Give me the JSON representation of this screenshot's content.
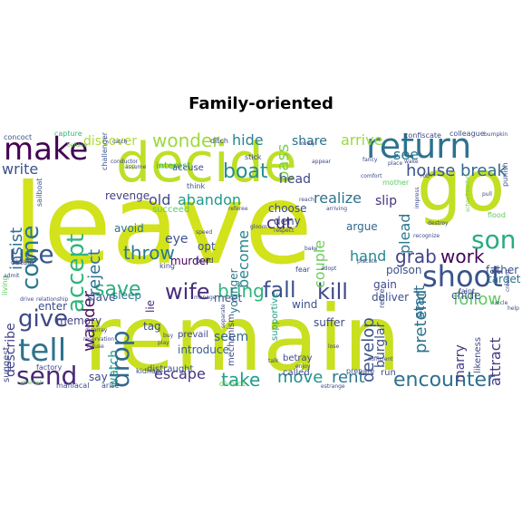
{
  "title": "Family-oriented",
  "words": [
    {
      "text": "leave",
      "color": "#d2e21b"
    },
    {
      "text": "remain",
      "color": "#c8e020"
    },
    {
      "text": "decide",
      "color": "#bddf26"
    },
    {
      "text": "go",
      "color": "#c2df23"
    },
    {
      "text": "return",
      "color": "#2c728e"
    },
    {
      "text": "make",
      "color": "#440154"
    },
    {
      "text": "shoot",
      "color": "#3b528b"
    },
    {
      "text": "tell",
      "color": "#2c728e"
    },
    {
      "text": "send",
      "color": "#482878"
    },
    {
      "text": "give",
      "color": "#3e4989"
    },
    {
      "text": "fall",
      "color": "#3b528b"
    },
    {
      "text": "use",
      "color": "#38588c"
    },
    {
      "text": "drop",
      "color": "#31688e"
    },
    {
      "text": "kill",
      "color": "#3e4a89"
    },
    {
      "text": "son",
      "color": "#27ad81"
    },
    {
      "text": "come",
      "color": "#2a788e"
    },
    {
      "text": "accept",
      "color": "#31b57b"
    },
    {
      "text": "save",
      "color": "#29af7f"
    },
    {
      "text": "wife",
      "color": "#472d7b"
    },
    {
      "text": "bring",
      "color": "#2fb47c"
    },
    {
      "text": "encounter",
      "color": "#2d708e"
    },
    {
      "text": "boat",
      "color": "#21908d"
    },
    {
      "text": "throw",
      "color": "#2a788e"
    },
    {
      "text": "follow",
      "color": "#5ec962"
    },
    {
      "text": "work",
      "color": "#450457"
    },
    {
      "text": "grab",
      "color": "#404688"
    },
    {
      "text": "take",
      "color": "#1f9e89"
    },
    {
      "text": "move",
      "color": "#1f948c"
    },
    {
      "text": "rent",
      "color": "#2a788e"
    },
    {
      "text": "wonder",
      "color": "#9bd93c"
    },
    {
      "text": "pretend",
      "color": "#2c728e"
    },
    {
      "text": "develop",
      "color": "#3b528b"
    },
    {
      "text": "insist",
      "color": "#2e6f8e"
    },
    {
      "text": "wander",
      "color": "#471063"
    },
    {
      "text": "reject",
      "color": "#2d708e"
    },
    {
      "text": "write",
      "color": "#3b528b"
    },
    {
      "text": "house",
      "color": "#3b528b"
    },
    {
      "text": "break",
      "color": "#31688e"
    },
    {
      "text": "escape",
      "color": "#46337e"
    },
    {
      "text": "hand",
      "color": "#23898e"
    },
    {
      "text": "see",
      "color": "#2a768e"
    },
    {
      "text": "old",
      "color": "#3e4a89"
    },
    {
      "text": "cut",
      "color": "#482173"
    },
    {
      "text": "realize",
      "color": "#2c728e"
    },
    {
      "text": "describe",
      "color": "#424186"
    },
    {
      "text": "marry",
      "color": "#453781"
    },
    {
      "text": "plead",
      "color": "#2a788e"
    },
    {
      "text": "couple",
      "color": "#6ccd5a"
    },
    {
      "text": "start",
      "color": "#2e6e8e"
    },
    {
      "text": "attract",
      "color": "#443b84"
    },
    {
      "text": "hide",
      "color": "#25848e"
    },
    {
      "text": "share",
      "color": "#2c728e"
    },
    {
      "text": "arrive",
      "color": "#9bd93c"
    },
    {
      "text": "pass",
      "color": "#7ad151"
    },
    {
      "text": "become",
      "color": "#25858e"
    },
    {
      "text": "discover",
      "color": "#aadc32"
    },
    {
      "text": "abandon",
      "color": "#1f9a8a"
    },
    {
      "text": "eye",
      "color": "#3b528b"
    },
    {
      "text": "watch",
      "color": "#1e9b8a"
    },
    {
      "text": "head",
      "color": "#3e4989"
    },
    {
      "text": "slip",
      "color": "#46327e"
    },
    {
      "text": "revenge",
      "color": "#424086"
    },
    {
      "text": "murder",
      "color": "#440154"
    },
    {
      "text": "seem",
      "color": "#31688e"
    },
    {
      "text": "introduce",
      "color": "#355f8d"
    },
    {
      "text": "burglar",
      "color": "#3b528b"
    },
    {
      "text": "suffer",
      "color": "#3e4989"
    },
    {
      "text": "target",
      "color": "#2c728e"
    },
    {
      "text": "father",
      "color": "#3b528b"
    },
    {
      "text": "chide",
      "color": "#3b528b"
    },
    {
      "text": "argue",
      "color": "#31688e"
    },
    {
      "text": "poison",
      "color": "#3b528b"
    },
    {
      "text": "deliver",
      "color": "#3b528b"
    },
    {
      "text": "gain",
      "color": "#3e4989"
    },
    {
      "text": "tag",
      "color": "#3e4a89"
    },
    {
      "text": "say",
      "color": "#3e4a89"
    },
    {
      "text": "slave",
      "color": "#3b528b"
    },
    {
      "text": "sleep",
      "color": "#2a788e"
    },
    {
      "text": "meet",
      "color": "#3b528b"
    },
    {
      "text": "lie",
      "color": "#472a7a"
    },
    {
      "text": "enter",
      "color": "#3e4a89"
    },
    {
      "text": "memory",
      "color": "#414487"
    },
    {
      "text": "avoid",
      "color": "#2c728e"
    },
    {
      "text": "opt",
      "color": "#3b528b"
    },
    {
      "text": "younger",
      "color": "#2a788e"
    },
    {
      "text": "choose",
      "color": "#3e4989"
    },
    {
      "text": "deny",
      "color": "#3e4989"
    },
    {
      "text": "wind",
      "color": "#3b528b"
    },
    {
      "text": "interest",
      "color": "#35b779"
    },
    {
      "text": "accuse",
      "color": "#3e4989"
    },
    {
      "text": "succeed",
      "color": "#5ec962"
    },
    {
      "text": "prevail",
      "color": "#3e4989"
    },
    {
      "text": "betray",
      "color": "#3e4a89"
    },
    {
      "text": "called",
      "color": "#3e4989"
    },
    {
      "text": "run",
      "color": "#3e4989"
    },
    {
      "text": "prepare",
      "color": "#3e4a89"
    },
    {
      "text": "supportive",
      "color": "#1fa187"
    },
    {
      "text": "mechanism",
      "color": "#3e4989"
    },
    {
      "text": "distraught",
      "color": "#3b528b"
    },
    {
      "text": "arise",
      "color": "#3e4a89"
    },
    {
      "text": "suggest",
      "color": "#3e4989"
    },
    {
      "text": "concoct",
      "color": "#3b528b"
    },
    {
      "text": "capture",
      "color": "#35b779"
    },
    {
      "text": "living",
      "color": "#5ec962"
    },
    {
      "text": "kidnap",
      "color": "#3e4a89"
    },
    {
      "text": "ship",
      "color": "#b5de2b"
    },
    {
      "text": "challenger",
      "color": "#3b528b"
    },
    {
      "text": "king",
      "color": "#3e4989"
    },
    {
      "text": "colleague",
      "color": "#3e4989"
    },
    {
      "text": "bumpkin",
      "color": "#3e4989"
    },
    {
      "text": "punish",
      "color": "#3b528b"
    },
    {
      "text": "confiscate",
      "color": "#3e4989"
    },
    {
      "text": "stick",
      "color": "#3e4989"
    },
    {
      "text": "factory",
      "color": "#3e4a89"
    },
    {
      "text": "sailboat",
      "color": "#3b528b"
    },
    {
      "text": "retire",
      "color": "#3e4989"
    },
    {
      "text": "faint",
      "color": "#3e4989"
    },
    {
      "text": "fear",
      "color": "#3e4989"
    },
    {
      "text": "think",
      "color": "#3b528b"
    },
    {
      "text": "obtain",
      "color": "#3e4989"
    },
    {
      "text": "drive",
      "color": "#3e4989"
    },
    {
      "text": "relationship",
      "color": "#3e4989"
    },
    {
      "text": "build",
      "color": "#3e4989"
    },
    {
      "text": "talk",
      "color": "#3e4989"
    },
    {
      "text": "manage",
      "color": "#3e4989"
    },
    {
      "text": "play",
      "color": "#3e4989"
    },
    {
      "text": "buy",
      "color": "#3e4989"
    },
    {
      "text": "catch",
      "color": "#3e4989"
    },
    {
      "text": "pull",
      "color": "#3e4989"
    },
    {
      "text": "respect",
      "color": "#3e4989"
    },
    {
      "text": "ditch",
      "color": "#3e4a89"
    },
    {
      "text": "behave",
      "color": "#6ccd5a"
    },
    {
      "text": "speed",
      "color": "#3e4989"
    },
    {
      "text": "place",
      "color": "#3e4989"
    },
    {
      "text": "fancy",
      "color": "#3e4989"
    },
    {
      "text": "comfort",
      "color": "#3e4989"
    },
    {
      "text": "mother",
      "color": "#5ec962"
    },
    {
      "text": "impress",
      "color": "#3e4989"
    },
    {
      "text": "schoolteacher",
      "color": "#6ccd5a"
    },
    {
      "text": "destroy",
      "color": "#3e4989"
    },
    {
      "text": "adopt",
      "color": "#3e4989"
    },
    {
      "text": "placate",
      "color": "#3e4989"
    },
    {
      "text": "bake",
      "color": "#3e4989"
    },
    {
      "text": "gloom",
      "color": "#3e4989"
    },
    {
      "text": "appear",
      "color": "#3e4989"
    },
    {
      "text": "lovely",
      "color": "#3e4989"
    },
    {
      "text": "rob",
      "color": "#3e4989"
    },
    {
      "text": "creating",
      "color": "#3e4989"
    },
    {
      "text": "uncle",
      "color": "#3e4989"
    },
    {
      "text": "help",
      "color": "#3e4989"
    },
    {
      "text": "divorce",
      "color": "#5ec962"
    },
    {
      "text": "attempt",
      "color": "#5ec962"
    },
    {
      "text": "maniacal",
      "color": "#3e4989"
    },
    {
      "text": "estrange",
      "color": "#3e4989"
    },
    {
      "text": "enjoy",
      "color": "#3e4989"
    },
    {
      "text": "separate",
      "color": "#3e4989"
    },
    {
      "text": "lose",
      "color": "#3e4989"
    },
    {
      "text": "arriving",
      "color": "#3e4989"
    },
    {
      "text": "reach",
      "color": "#3e4989"
    },
    {
      "text": "referee",
      "color": "#3e4989"
    },
    {
      "text": "reservation",
      "color": "#3e4989"
    },
    {
      "text": "recognize",
      "color": "#3e4989"
    },
    {
      "text": "likeness",
      "color": "#3e4989"
    },
    {
      "text": "conductor",
      "color": "#3e4989"
    },
    {
      "text": "assume",
      "color": "#3e4989"
    },
    {
      "text": "sufficient",
      "color": "#3e4989"
    },
    {
      "text": "refuse",
      "color": "#3e4989"
    },
    {
      "text": "flood",
      "color": "#5ec962"
    },
    {
      "text": "admit",
      "color": "#3e4989"
    },
    {
      "text": "disarray",
      "color": "#3e4989"
    },
    {
      "text": "wake",
      "color": "#3e4989"
    }
  ]
}
